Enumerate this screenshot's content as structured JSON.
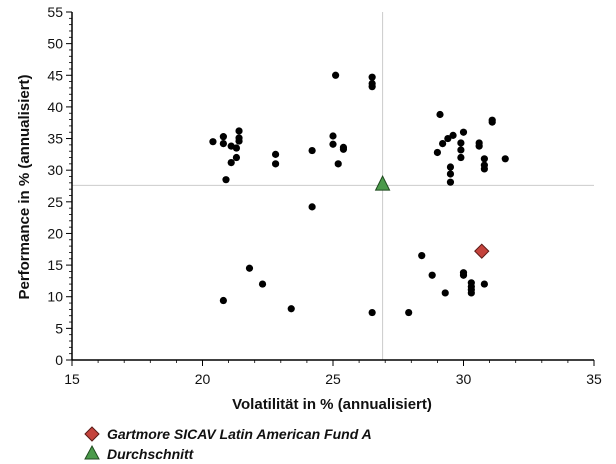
{
  "chart_data": {
    "type": "scatter",
    "xlabel": "Volatilität in % (annualisiert)",
    "ylabel": "Performance in % (annualisiert)",
    "xlim": [
      15,
      35
    ],
    "ylim": [
      0,
      55
    ],
    "xticks": [
      15,
      20,
      25,
      30,
      35
    ],
    "yticks": [
      0,
      5,
      10,
      15,
      20,
      25,
      30,
      35,
      40,
      45,
      50,
      55
    ],
    "grid": false,
    "reference_lines": {
      "x": 26.9,
      "y": 27.6,
      "color": "#cccccc"
    },
    "legend_position": "bottom-left",
    "series": [
      {
        "marker": "circle",
        "color": "#000000",
        "points": [
          [
            20.4,
            34.5
          ],
          [
            20.8,
            34.2
          ],
          [
            20.8,
            35.3
          ],
          [
            21.1,
            33.8
          ],
          [
            21.3,
            33.5
          ],
          [
            21.4,
            34.6
          ],
          [
            21.4,
            35.1
          ],
          [
            21.4,
            36.2
          ],
          [
            21.3,
            32.0
          ],
          [
            21.1,
            31.2
          ],
          [
            20.9,
            28.5
          ],
          [
            22.8,
            32.5
          ],
          [
            22.8,
            31.0
          ],
          [
            24.2,
            33.1
          ],
          [
            25.0,
            35.4
          ],
          [
            25.0,
            34.1
          ],
          [
            25.4,
            33.6
          ],
          [
            25.4,
            33.3
          ],
          [
            25.2,
            31.0
          ],
          [
            25.1,
            45.0
          ],
          [
            26.5,
            44.7
          ],
          [
            26.5,
            43.7
          ],
          [
            26.5,
            43.2
          ],
          [
            29.0,
            32.8
          ],
          [
            29.1,
            38.8
          ],
          [
            29.2,
            34.2
          ],
          [
            29.4,
            35.0
          ],
          [
            29.6,
            35.5
          ],
          [
            30.0,
            36.0
          ],
          [
            29.9,
            34.3
          ],
          [
            29.9,
            33.2
          ],
          [
            29.9,
            32.0
          ],
          [
            29.5,
            30.5
          ],
          [
            29.5,
            29.4
          ],
          [
            29.5,
            28.1
          ],
          [
            30.6,
            34.3
          ],
          [
            30.6,
            33.8
          ],
          [
            30.8,
            31.8
          ],
          [
            30.8,
            30.8
          ],
          [
            30.8,
            30.2
          ],
          [
            31.1,
            37.9
          ],
          [
            31.1,
            37.6
          ],
          [
            31.6,
            31.8
          ],
          [
            24.2,
            24.2
          ],
          [
            28.4,
            16.5
          ],
          [
            28.8,
            13.4
          ],
          [
            29.3,
            10.6
          ],
          [
            30.0,
            13.8
          ],
          [
            30.0,
            13.4
          ],
          [
            30.3,
            12.2
          ],
          [
            30.3,
            11.6
          ],
          [
            30.3,
            11.1
          ],
          [
            30.3,
            10.6
          ],
          [
            30.8,
            12.0
          ],
          [
            21.8,
            14.5
          ],
          [
            22.3,
            12.0
          ],
          [
            20.8,
            9.4
          ],
          [
            23.4,
            8.1
          ],
          [
            26.5,
            7.5
          ],
          [
            27.9,
            7.5
          ]
        ]
      },
      {
        "name": "Gartmore SICAV Latin American Fund A",
        "marker": "diamond",
        "color": "#c4433c",
        "points": [
          [
            30.7,
            17.2
          ]
        ]
      },
      {
        "name": "Durchschnitt",
        "marker": "triangle",
        "color": "#4a9a4a",
        "points": [
          [
            26.9,
            27.8
          ]
        ]
      }
    ]
  }
}
